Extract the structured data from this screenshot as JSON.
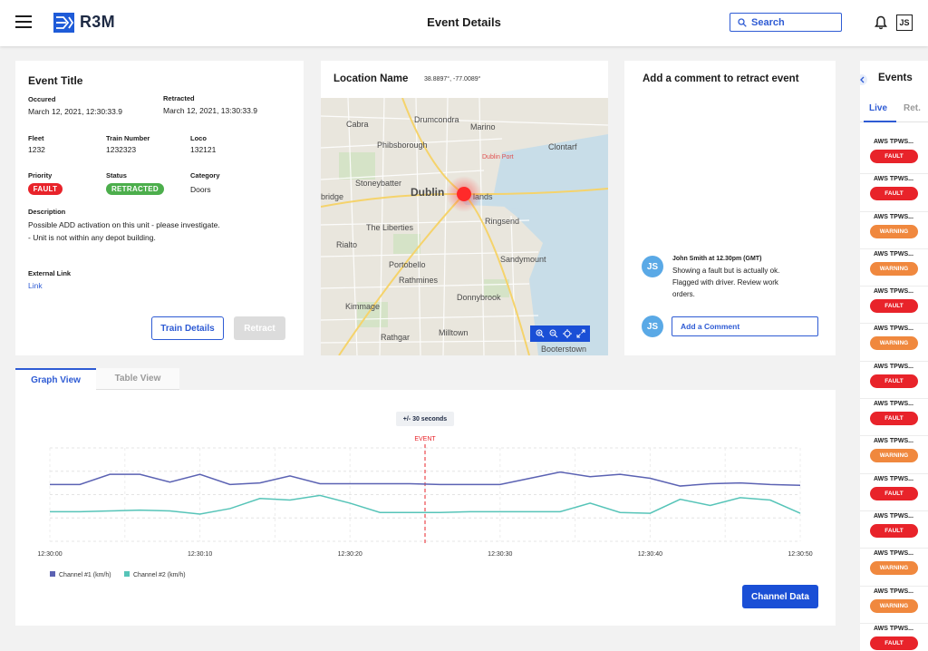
{
  "app": {
    "name": "R3M",
    "page_title": "Event Details"
  },
  "header": {
    "search_placeholder": "Search",
    "user_initials": "JS"
  },
  "event": {
    "title": "Event Title",
    "occured_label": "Occured",
    "occured_value": "March 12, 2021, 12:30:33.9",
    "retracted_label": "Retracted",
    "retracted_value": "March 12, 2021, 13:30:33.9",
    "fleet_label": "Fleet",
    "fleet_value": "1232",
    "train_number_label": "Train Number",
    "train_number_value": "1232323",
    "loco_label": "Loco",
    "loco_value": "132121",
    "priority_label": "Priority",
    "priority_value": "FAULT",
    "status_label": "Status",
    "status_value": "RETRACTED",
    "category_label": "Category",
    "category_value": "Doors",
    "description_label": "Description",
    "description_line1": "Possible ADD activation on this unit - please investigate.",
    "description_line2": "- Unit is not within any depot building.",
    "external_link_label": "External Link",
    "external_link_text": "Link",
    "train_details_button": "Train Details",
    "retract_button": "Retract"
  },
  "location": {
    "title": "Location Name",
    "coords": "38.8897°, -77.0089°",
    "map_labels": [
      "Cabra",
      "Drumcondra",
      "Marino",
      "Phibsborough",
      "Clontarf",
      "Dublin Port",
      "Stoneybatter",
      "Dublin",
      "lands",
      "bridge",
      "The Liberties",
      "Ringsend",
      "Rialto",
      "Portobello",
      "Sandymount",
      "Rathmines",
      "Kimmage",
      "Donnybrook",
      "Rathgar",
      "Milltown",
      "Booterstown"
    ]
  },
  "comments": {
    "title": "Add a comment to retract event",
    "author_line": "John Smith at 12.30pm (GMT)",
    "text_line1": "Showing a fault but is actually ok.",
    "text_line2": "Flagged with driver. Review work",
    "text_line3": "orders.",
    "avatar_initials": "JS",
    "input_placeholder": "Add a Comment"
  },
  "tabs": {
    "graph_view": "Graph View",
    "table_view": "Table View"
  },
  "graph": {
    "range_label": "+/- 30 seconds",
    "event_label": "EVENT",
    "channel_button": "Channel Data"
  },
  "colors": {
    "primary": "#1a4fd6",
    "fault": "#e8232a",
    "warning": "#f0883e",
    "retracted": "#4cae4c",
    "channel1": "#5b62b3",
    "channel2": "#56c4b8"
  },
  "chart_data": {
    "type": "line",
    "x": [
      "12:30:00",
      "12:30:02",
      "12:30:04",
      "12:30:06",
      "12:30:08",
      "12:30:10",
      "12:30:12",
      "12:30:14",
      "12:30:16",
      "12:30:18",
      "12:30:20",
      "12:30:22",
      "12:30:24",
      "12:30:26",
      "12:30:28",
      "12:30:30",
      "12:30:32",
      "12:30:34",
      "12:30:36",
      "12:30:38",
      "12:30:40",
      "12:30:42",
      "12:30:44",
      "12:30:46",
      "12:30:48",
      "12:30:50"
    ],
    "x_ticks": [
      "12:30:00",
      "12:30:10",
      "12:30:20",
      "12:30:30",
      "12:30:40",
      "12:30:50"
    ],
    "event_x": "12:30:25",
    "series": [
      {
        "name": "Channel #1 (km/h)",
        "values": [
          7.3,
          7.3,
          8.6,
          8.6,
          7.6,
          8.6,
          7.3,
          7.5,
          8.4,
          7.4,
          7.4,
          7.4,
          7.4,
          7.3,
          7.3,
          7.3,
          8.1,
          8.9,
          8.3,
          8.6,
          8.1,
          7.1,
          7.4,
          7.5,
          7.3,
          7.2
        ]
      },
      {
        "name": "Channel #2 (km/h)",
        "values": [
          3.8,
          3.8,
          3.9,
          4.0,
          3.9,
          3.5,
          4.2,
          5.5,
          5.3,
          5.9,
          4.9,
          3.7,
          3.7,
          3.7,
          3.8,
          3.8,
          3.8,
          3.8,
          4.9,
          3.7,
          3.6,
          5.4,
          4.6,
          5.6,
          5.3,
          3.6
        ]
      }
    ],
    "ylim": [
      0,
      12
    ],
    "grid": true,
    "legend": "bottom-left"
  },
  "events_panel": {
    "title": "Events",
    "tab_live": "Live",
    "tab_ret": "Ret.",
    "items": [
      {
        "name": "AWS TPWS...",
        "status": "FAULT",
        "type": "fault"
      },
      {
        "name": "AWS TPWS...",
        "status": "FAULT",
        "type": "fault"
      },
      {
        "name": "AWS TPWS...",
        "status": "WARNING",
        "type": "warning"
      },
      {
        "name": "AWS TPWS...",
        "status": "WARNING",
        "type": "warning"
      },
      {
        "name": "AWS TPWS...",
        "status": "FAULT",
        "type": "fault"
      },
      {
        "name": "AWS TPWS...",
        "status": "WARNING",
        "type": "warning"
      },
      {
        "name": "AWS TPWS...",
        "status": "FAULT",
        "type": "fault"
      },
      {
        "name": "AWS TPWS...",
        "status": "FAULT",
        "type": "fault"
      },
      {
        "name": "AWS TPWS...",
        "status": "WARNING",
        "type": "warning"
      },
      {
        "name": "AWS TPWS...",
        "status": "FAULT",
        "type": "fault"
      },
      {
        "name": "AWS TPWS...",
        "status": "FAULT",
        "type": "fault"
      },
      {
        "name": "AWS TPWS...",
        "status": "WARNING",
        "type": "warning"
      },
      {
        "name": "AWS TPWS...",
        "status": "WARNING",
        "type": "warning"
      },
      {
        "name": "AWS TPWS...",
        "status": "FAULT",
        "type": "fault"
      }
    ]
  }
}
